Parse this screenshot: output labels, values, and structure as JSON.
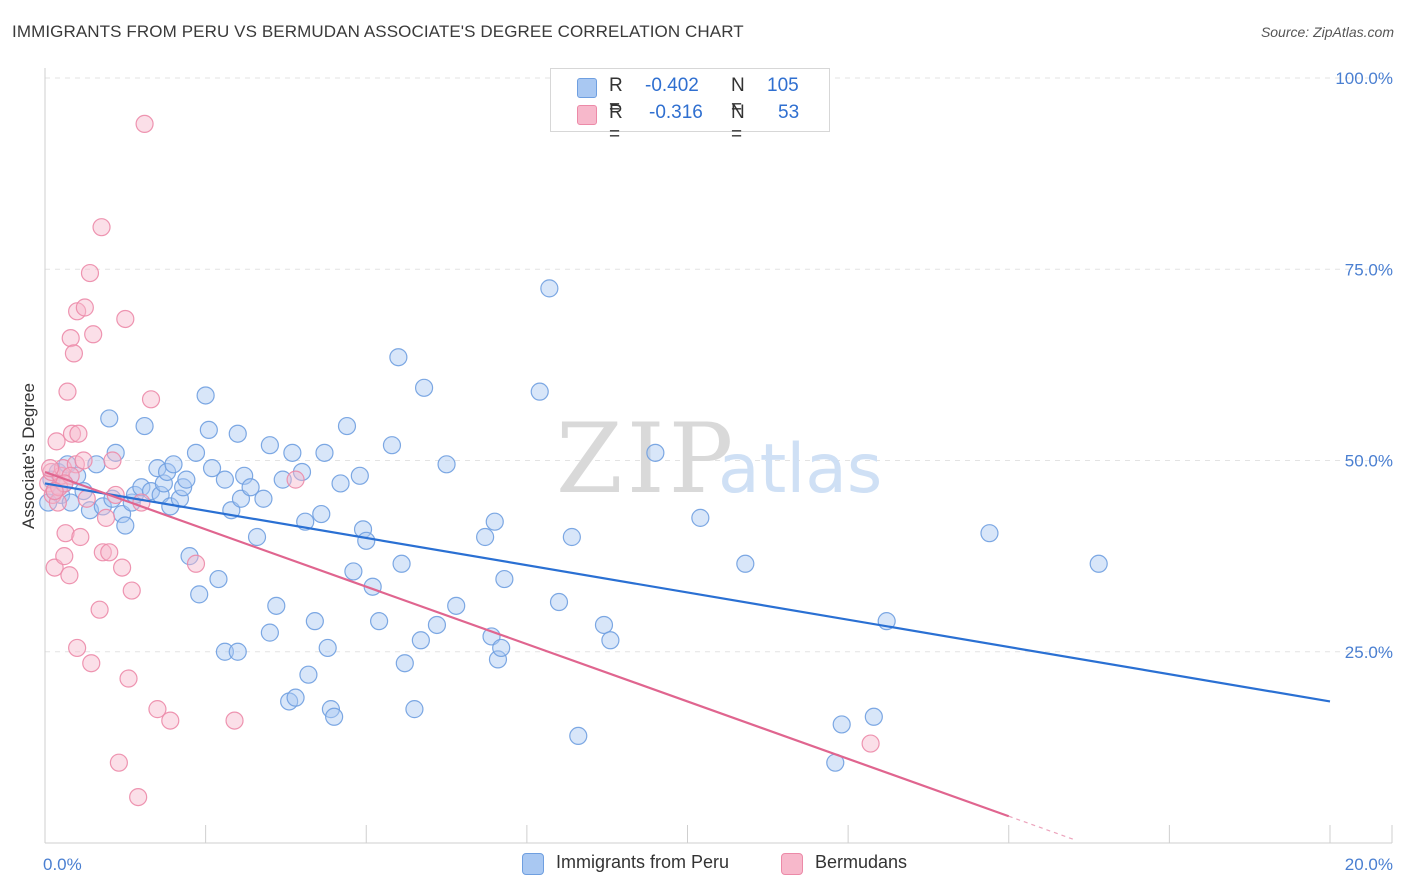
{
  "title": "IMMIGRANTS FROM PERU VS BERMUDAN ASSOCIATE'S DEGREE CORRELATION CHART",
  "source": "Source: ZipAtlas.com",
  "watermark": {
    "zip": "ZIP",
    "atlas": "atlas"
  },
  "legend": {
    "r_label": "R =",
    "n_label": "N =",
    "rows": [
      {
        "r": "-0.402",
        "n": "105",
        "color": "#a9c8f2"
      },
      {
        "r": "-0.316",
        "n": "53",
        "color": "#f7b8cb"
      }
    ]
  },
  "bottom_legend": [
    "Immigrants from Peru",
    "Bermudans"
  ],
  "colors": {
    "blue_fill": "#a9c8f2",
    "blue_stroke": "#6f9fe0",
    "blue_line": "#2a70d3",
    "pink_fill": "#f7b8cb",
    "pink_stroke": "#ec8aa8",
    "pink_line": "#e0658f",
    "tick_color": "#4a7fd1",
    "grid": "#e3e3e3"
  },
  "chart_data": {
    "type": "scatter",
    "title": "IMMIGRANTS FROM PERU VS BERMUDAN ASSOCIATE'S DEGREE CORRELATION CHART",
    "xlabel": "",
    "ylabel": "Associate's Degree",
    "xlim": [
      0,
      20
    ],
    "ylim": [
      0,
      100
    ],
    "x_tick_labels": [
      "0.0%",
      "20.0%"
    ],
    "y_ticks": [
      25,
      50,
      75,
      100
    ],
    "y_tick_labels": [
      "25.0%",
      "50.0%",
      "75.0%",
      "100.0%"
    ],
    "grid": true,
    "legend_position": "top-center",
    "series": [
      {
        "name": "Immigrants from Peru",
        "r": -0.402,
        "n": 105,
        "trend": {
          "x": [
            0,
            20
          ],
          "y": [
            47.0,
            18.5
          ]
        },
        "points": [
          [
            0.1,
            47.5
          ],
          [
            0.15,
            46.0
          ],
          [
            0.2,
            48.5
          ],
          [
            0.25,
            45.5
          ],
          [
            0.3,
            47.0
          ],
          [
            0.35,
            49.5
          ],
          [
            0.4,
            44.5
          ],
          [
            0.5,
            48.0
          ],
          [
            0.6,
            46.0
          ],
          [
            0.7,
            43.5
          ],
          [
            0.8,
            49.5
          ],
          [
            0.9,
            44.0
          ],
          [
            1.0,
            55.5
          ],
          [
            1.05,
            45.0
          ],
          [
            1.1,
            51.0
          ],
          [
            1.2,
            43.0
          ],
          [
            1.25,
            41.5
          ],
          [
            1.35,
            44.5
          ],
          [
            1.4,
            45.5
          ],
          [
            1.5,
            46.5
          ],
          [
            1.55,
            54.5
          ],
          [
            1.65,
            46.0
          ],
          [
            1.75,
            49.0
          ],
          [
            1.8,
            45.5
          ],
          [
            1.85,
            47.0
          ],
          [
            1.9,
            48.5
          ],
          [
            1.95,
            44.0
          ],
          [
            2.0,
            49.5
          ],
          [
            2.1,
            45.0
          ],
          [
            2.15,
            46.5
          ],
          [
            2.2,
            47.5
          ],
          [
            2.25,
            37.5
          ],
          [
            2.35,
            51.0
          ],
          [
            2.4,
            32.5
          ],
          [
            2.5,
            58.5
          ],
          [
            2.55,
            54.0
          ],
          [
            2.6,
            49.0
          ],
          [
            2.7,
            34.5
          ],
          [
            2.8,
            47.5
          ],
          [
            2.8,
            25.0
          ],
          [
            2.9,
            43.5
          ],
          [
            3.0,
            53.5
          ],
          [
            3.0,
            25.0
          ],
          [
            3.05,
            45.0
          ],
          [
            3.1,
            48.0
          ],
          [
            3.2,
            46.5
          ],
          [
            3.3,
            40.0
          ],
          [
            3.4,
            45.0
          ],
          [
            3.5,
            52.0
          ],
          [
            3.5,
            27.5
          ],
          [
            3.6,
            31.0
          ],
          [
            3.7,
            47.5
          ],
          [
            3.8,
            18.5
          ],
          [
            3.85,
            51.0
          ],
          [
            3.9,
            19.0
          ],
          [
            4.0,
            48.5
          ],
          [
            4.05,
            42.0
          ],
          [
            4.1,
            22.0
          ],
          [
            4.2,
            29.0
          ],
          [
            4.3,
            43.0
          ],
          [
            4.35,
            51.0
          ],
          [
            4.4,
            25.5
          ],
          [
            4.45,
            17.5
          ],
          [
            4.5,
            16.5
          ],
          [
            4.6,
            47.0
          ],
          [
            4.7,
            54.5
          ],
          [
            4.8,
            35.5
          ],
          [
            4.9,
            48.0
          ],
          [
            4.95,
            41.0
          ],
          [
            5.0,
            39.5
          ],
          [
            5.1,
            33.5
          ],
          [
            5.2,
            29.0
          ],
          [
            5.4,
            52.0
          ],
          [
            5.5,
            63.5
          ],
          [
            5.55,
            36.5
          ],
          [
            5.6,
            23.5
          ],
          [
            5.75,
            17.5
          ],
          [
            5.85,
            26.5
          ],
          [
            5.9,
            59.5
          ],
          [
            6.1,
            28.5
          ],
          [
            6.25,
            49.5
          ],
          [
            6.4,
            31.0
          ],
          [
            6.85,
            40.0
          ],
          [
            6.95,
            27.0
          ],
          [
            7.0,
            42.0
          ],
          [
            7.05,
            24.0
          ],
          [
            7.1,
            25.5
          ],
          [
            7.15,
            34.5
          ],
          [
            7.7,
            59.0
          ],
          [
            7.85,
            72.5
          ],
          [
            8.0,
            31.5
          ],
          [
            8.2,
            40.0
          ],
          [
            8.3,
            14.0
          ],
          [
            8.7,
            28.5
          ],
          [
            8.8,
            26.5
          ],
          [
            9.5,
            51.0
          ],
          [
            10.2,
            42.5
          ],
          [
            10.9,
            36.5
          ],
          [
            12.4,
            15.5
          ],
          [
            12.3,
            10.5
          ],
          [
            12.9,
            16.5
          ],
          [
            13.1,
            29.0
          ],
          [
            14.7,
            40.5
          ],
          [
            16.4,
            36.5
          ],
          [
            0.05,
            44.5
          ]
        ]
      },
      {
        "name": "Bermudans",
        "r": -0.316,
        "n": 53,
        "trend": {
          "x": [
            0,
            15.0
          ],
          "y": [
            48.5,
            3.5
          ]
        },
        "trend_dashed": {
          "x": [
            15.0,
            16.0
          ],
          "y": [
            3.5,
            0.5
          ]
        },
        "points": [
          [
            0.05,
            47.0
          ],
          [
            0.1,
            48.5
          ],
          [
            0.12,
            45.5
          ],
          [
            0.15,
            36.0
          ],
          [
            0.18,
            52.5
          ],
          [
            0.2,
            44.5
          ],
          [
            0.22,
            46.5
          ],
          [
            0.25,
            48.0
          ],
          [
            0.28,
            49.0
          ],
          [
            0.3,
            37.5
          ],
          [
            0.32,
            40.5
          ],
          [
            0.35,
            59.0
          ],
          [
            0.38,
            35.0
          ],
          [
            0.4,
            66.0
          ],
          [
            0.42,
            53.5
          ],
          [
            0.45,
            64.0
          ],
          [
            0.48,
            49.5
          ],
          [
            0.5,
            69.5
          ],
          [
            0.5,
            25.5
          ],
          [
            0.55,
            40.0
          ],
          [
            0.6,
            50.0
          ],
          [
            0.62,
            70.0
          ],
          [
            0.7,
            74.5
          ],
          [
            0.72,
            23.5
          ],
          [
            0.75,
            66.5
          ],
          [
            0.85,
            30.5
          ],
          [
            0.88,
            80.5
          ],
          [
            0.9,
            38.0
          ],
          [
            0.95,
            42.5
          ],
          [
            1.0,
            38.0
          ],
          [
            1.05,
            50.0
          ],
          [
            1.1,
            45.5
          ],
          [
            1.15,
            10.5
          ],
          [
            1.2,
            36.0
          ],
          [
            1.25,
            68.5
          ],
          [
            1.3,
            21.5
          ],
          [
            1.35,
            33.0
          ],
          [
            1.45,
            6.0
          ],
          [
            1.5,
            44.5
          ],
          [
            1.55,
            94.0
          ],
          [
            1.65,
            58.0
          ],
          [
            1.75,
            17.5
          ],
          [
            1.95,
            16.0
          ],
          [
            2.35,
            36.5
          ],
          [
            2.95,
            16.0
          ],
          [
            3.9,
            47.5
          ],
          [
            0.4,
            48.0
          ],
          [
            0.3,
            47.0
          ],
          [
            0.15,
            46.0
          ],
          [
            0.08,
            49.0
          ],
          [
            0.52,
            53.5
          ],
          [
            0.65,
            45.0
          ],
          [
            12.85,
            13.0
          ]
        ]
      }
    ]
  }
}
